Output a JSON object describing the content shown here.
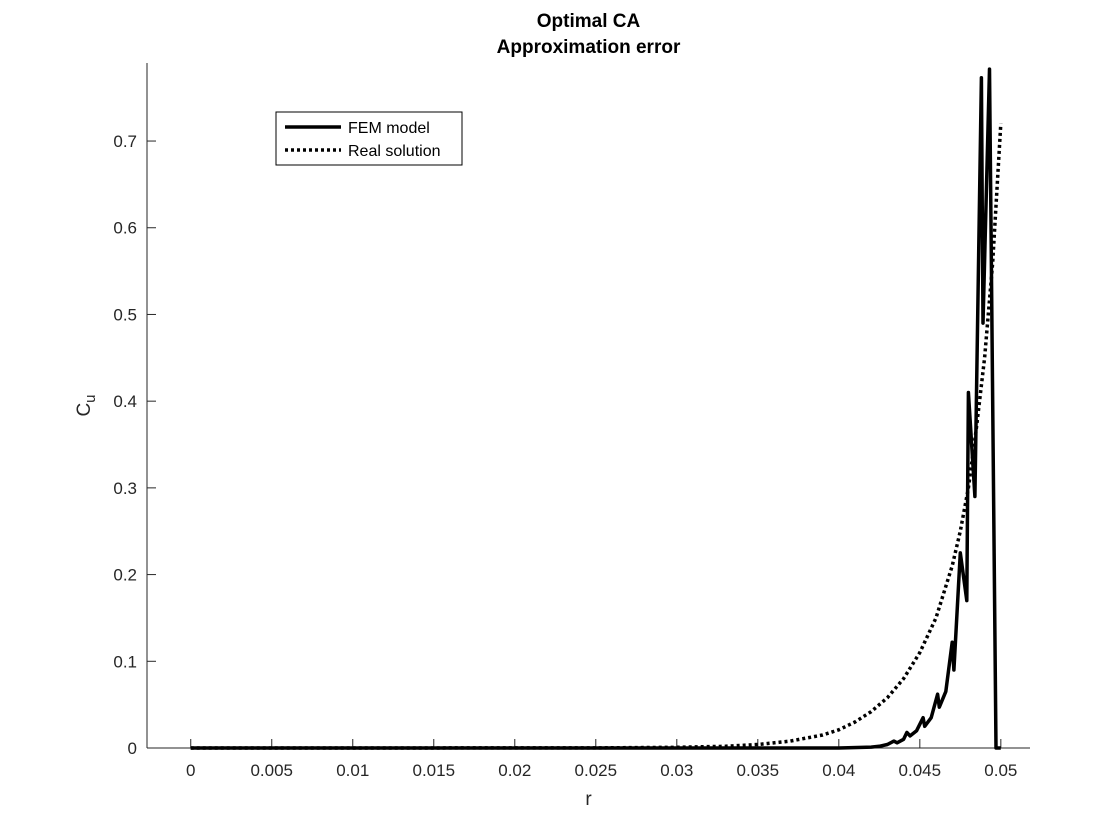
{
  "chart_data": {
    "type": "line",
    "title": "Optimal CA",
    "subtitle": "Approximation error",
    "xlabel": "r",
    "ylabel": "C",
    "ylabel_subscript": "u",
    "xlim": [
      -0.0027,
      0.0518
    ],
    "ylim": [
      0,
      0.79
    ],
    "grid": false,
    "legend_position": "top-left",
    "xticks": [
      0,
      0.005,
      0.01,
      0.015,
      0.02,
      0.025,
      0.03,
      0.035,
      0.04,
      0.045,
      0.05
    ],
    "xtick_labels": [
      "0",
      "0.005",
      "0.01",
      "0.015",
      "0.02",
      "0.025",
      "0.03",
      "0.035",
      "0.04",
      "0.045",
      "0.05"
    ],
    "yticks": [
      0,
      0.1,
      0.2,
      0.3,
      0.4,
      0.5,
      0.6,
      0.7
    ],
    "ytick_labels": [
      "0",
      "0.1",
      "0.2",
      "0.3",
      "0.4",
      "0.5",
      "0.6",
      "0.7"
    ],
    "series": [
      {
        "name": "FEM model",
        "style": "solid",
        "color": "#000000",
        "x": [
          0,
          0.04,
          0.042,
          0.0425,
          0.043,
          0.0434,
          0.0436,
          0.044,
          0.0442,
          0.0444,
          0.0448,
          0.0452,
          0.0453,
          0.0457,
          0.0461,
          0.0462,
          0.0466,
          0.047,
          0.0471,
          0.0475,
          0.0479,
          0.048,
          0.0484,
          0.0488,
          0.0489,
          0.0493,
          0.0497,
          0.0498,
          0.05,
          0.05
        ],
        "y": [
          0,
          0,
          0.001,
          0.002,
          0.004,
          0.008,
          0.006,
          0.01,
          0.018,
          0.014,
          0.02,
          0.035,
          0.025,
          0.035,
          0.062,
          0.047,
          0.065,
          0.122,
          0.09,
          0.225,
          0.17,
          0.41,
          0.29,
          0.773,
          0.49,
          0.783,
          0.0,
          0,
          0,
          0
        ]
      },
      {
        "name": "Real solution",
        "style": "dotted",
        "color": "#000000",
        "x": [
          0,
          0.025,
          0.03,
          0.033,
          0.035,
          0.037,
          0.039,
          0.04,
          0.041,
          0.042,
          0.043,
          0.044,
          0.045,
          0.046,
          0.047,
          0.0475,
          0.048,
          0.0485,
          0.049,
          0.0495,
          0.05
        ],
        "y": [
          0,
          0.0001,
          0.0008,
          0.002,
          0.004,
          0.008,
          0.015,
          0.021,
          0.03,
          0.042,
          0.058,
          0.08,
          0.11,
          0.15,
          0.21,
          0.25,
          0.3,
          0.37,
          0.45,
          0.56,
          0.72
        ]
      }
    ]
  }
}
